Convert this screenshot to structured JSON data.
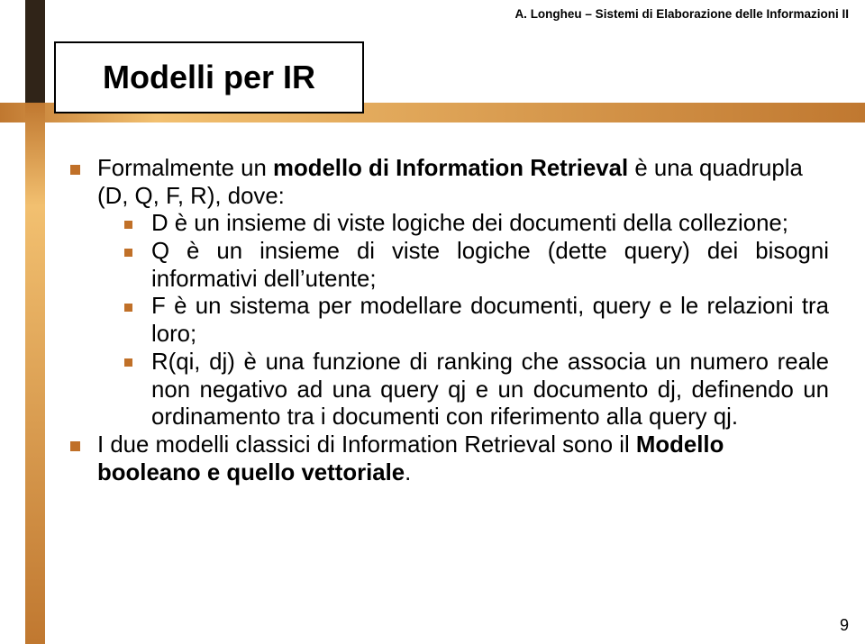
{
  "header": "A. Longheu – Sistemi di Elaborazione delle Informazioni II",
  "title": "Modelli per IR",
  "colors": {
    "bullet": "#c07028",
    "bar_dark": "#302418",
    "bar_grad_a": "#c07830",
    "bar_grad_b": "#f2c070",
    "text": "#000000",
    "bg": "#ffffff"
  },
  "bullets": {
    "b1_pre": "Formalmente un ",
    "b1_bold": "modello di Information Retrieval",
    "b1_post": " è una quadrupla (D, Q, F, R), dove:",
    "b1a": "D è un insieme di viste logiche dei documenti della collezione;",
    "b1b": "Q è un insieme di viste logiche (dette query) dei bisogni informativi dell’utente;",
    "b1c": "F è un sistema per modellare documenti, query e le relazioni tra loro;",
    "b1d": "R(qi, dj) è una funzione di ranking che associa un numero reale non negativo ad una query qj e un documento dj, definendo un ordinamento tra i documenti con riferimento alla query qj.",
    "b2_pre": "I due modelli classici di Information Retrieval sono il ",
    "b2_bold": "Modello booleano e quello vettoriale",
    "b2_post": "."
  },
  "page_number": "9"
}
